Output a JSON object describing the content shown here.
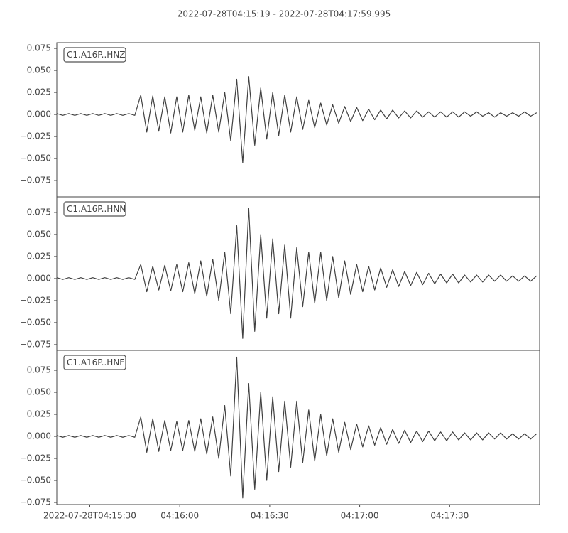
{
  "title": "2022-07-28T04:15:19  -  2022-07-28T04:17:59.995",
  "chart_data": [
    {
      "type": "line",
      "label": "C1.A16P..HNZ",
      "color": "#404040",
      "xlim": [
        19,
        179.995
      ],
      "ylim": [
        -0.0935,
        0.0815
      ],
      "yticks": [
        {
          "value": -0.075,
          "label": "−0.075"
        },
        {
          "value": -0.05,
          "label": "−0.050"
        },
        {
          "value": -0.025,
          "label": "−0.025"
        },
        {
          "value": 0,
          "label": "0.000"
        },
        {
          "value": 0.025,
          "label": "0.025"
        },
        {
          "value": 0.05,
          "label": "0.050"
        },
        {
          "value": 0.075,
          "label": "0.075"
        }
      ],
      "x": [
        19,
        21,
        23,
        25,
        27,
        29,
        31,
        33,
        35,
        37,
        39,
        41,
        43,
        45,
        47,
        49,
        51,
        53,
        55,
        57,
        59,
        61,
        63,
        65,
        67,
        69,
        71,
        73,
        75,
        77,
        79,
        81,
        83,
        85,
        87,
        89,
        91,
        93,
        95,
        97,
        99,
        101,
        103,
        105,
        107,
        109,
        111,
        113,
        115,
        117,
        119,
        121,
        123,
        125,
        127,
        129,
        131,
        133,
        135,
        137,
        139,
        141,
        143,
        145,
        147,
        149,
        151,
        153,
        155,
        157,
        159,
        161,
        163,
        165,
        167,
        169,
        171,
        173,
        175,
        177,
        179
      ],
      "values": [
        0.001,
        -0.001,
        0.001,
        -0.001,
        0.001,
        -0.001,
        0.001,
        -0.001,
        0.001,
        -0.001,
        0.001,
        -0.001,
        0.001,
        -0.001,
        0.022,
        -0.02,
        0.021,
        -0.019,
        0.02,
        -0.021,
        0.02,
        -0.02,
        0.022,
        -0.018,
        0.02,
        -0.021,
        0.022,
        -0.02,
        0.025,
        -0.03,
        0.04,
        -0.055,
        0.043,
        -0.035,
        0.03,
        -0.028,
        0.025,
        -0.024,
        0.022,
        -0.02,
        0.02,
        -0.017,
        0.016,
        -0.015,
        0.013,
        -0.012,
        0.011,
        -0.01,
        0.009,
        -0.008,
        0.008,
        -0.007,
        0.006,
        -0.006,
        0.005,
        -0.005,
        0.005,
        -0.004,
        0.004,
        -0.004,
        0.004,
        -0.003,
        0.003,
        -0.003,
        0.003,
        -0.003,
        0.003,
        -0.003,
        0.003,
        -0.002,
        0.003,
        -0.002,
        0.002,
        -0.003,
        0.002,
        -0.002,
        0.002,
        -0.002,
        0.003,
        -0.002,
        0.002
      ]
    },
    {
      "type": "line",
      "label": "C1.A16P..HNN",
      "color": "#404040",
      "xlim": [
        19,
        179.995
      ],
      "ylim": [
        -0.0815,
        0.0927
      ],
      "yticks": [
        {
          "value": -0.075,
          "label": "−0.075"
        },
        {
          "value": -0.05,
          "label": "−0.050"
        },
        {
          "value": -0.025,
          "label": "−0.025"
        },
        {
          "value": 0,
          "label": "0.000"
        },
        {
          "value": 0.025,
          "label": "0.025"
        },
        {
          "value": 0.05,
          "label": "0.050"
        },
        {
          "value": 0.075,
          "label": "0.075"
        }
      ],
      "x": [
        19,
        21,
        23,
        25,
        27,
        29,
        31,
        33,
        35,
        37,
        39,
        41,
        43,
        45,
        47,
        49,
        51,
        53,
        55,
        57,
        59,
        61,
        63,
        65,
        67,
        69,
        71,
        73,
        75,
        77,
        79,
        81,
        83,
        85,
        87,
        89,
        91,
        93,
        95,
        97,
        99,
        101,
        103,
        105,
        107,
        109,
        111,
        113,
        115,
        117,
        119,
        121,
        123,
        125,
        127,
        129,
        131,
        133,
        135,
        137,
        139,
        141,
        143,
        145,
        147,
        149,
        151,
        153,
        155,
        157,
        159,
        161,
        163,
        165,
        167,
        169,
        171,
        173,
        175,
        177,
        179
      ],
      "values": [
        0.001,
        -0.001,
        0.001,
        -0.001,
        0.001,
        -0.001,
        0.001,
        -0.001,
        0.001,
        -0.001,
        0.001,
        -0.001,
        0.001,
        -0.001,
        0.016,
        -0.015,
        0.014,
        -0.013,
        0.015,
        -0.014,
        0.016,
        -0.015,
        0.018,
        -0.017,
        0.02,
        -0.02,
        0.022,
        -0.025,
        0.03,
        -0.04,
        0.06,
        -0.068,
        0.08,
        -0.06,
        0.05,
        -0.045,
        0.045,
        -0.04,
        0.038,
        -0.045,
        0.035,
        -0.032,
        0.03,
        -0.028,
        0.03,
        -0.025,
        0.025,
        -0.022,
        0.02,
        -0.018,
        0.016,
        -0.015,
        0.014,
        -0.013,
        0.012,
        -0.01,
        0.01,
        -0.009,
        0.008,
        -0.008,
        0.007,
        -0.007,
        0.006,
        -0.006,
        0.005,
        -0.005,
        0.005,
        -0.005,
        0.004,
        -0.004,
        0.004,
        -0.004,
        0.004,
        -0.003,
        0.004,
        -0.003,
        0.003,
        -0.003,
        0.003,
        -0.003,
        0.003
      ]
    },
    {
      "type": "line",
      "label": "C1.A16P..HNE",
      "color": "#404040",
      "xlim": [
        19,
        179.995
      ],
      "ylim": [
        -0.0774,
        0.0976
      ],
      "yticks": [
        {
          "value": -0.075,
          "label": "−0.075"
        },
        {
          "value": -0.05,
          "label": "−0.050"
        },
        {
          "value": -0.025,
          "label": "−0.025"
        },
        {
          "value": 0,
          "label": "0.000"
        },
        {
          "value": 0.025,
          "label": "0.025"
        },
        {
          "value": 0.05,
          "label": "0.050"
        },
        {
          "value": 0.075,
          "label": "0.075"
        }
      ],
      "xticks": [
        {
          "value": 30,
          "label": "2022-07-28T04:15:30"
        },
        {
          "value": 60,
          "label": "04:16:00"
        },
        {
          "value": 90,
          "label": "04:16:30"
        },
        {
          "value": 120,
          "label": "04:17:00"
        },
        {
          "value": 150,
          "label": "04:17:30"
        }
      ],
      "x": [
        19,
        21,
        23,
        25,
        27,
        29,
        31,
        33,
        35,
        37,
        39,
        41,
        43,
        45,
        47,
        49,
        51,
        53,
        55,
        57,
        59,
        61,
        63,
        65,
        67,
        69,
        71,
        73,
        75,
        77,
        79,
        81,
        83,
        85,
        87,
        89,
        91,
        93,
        95,
        97,
        99,
        101,
        103,
        105,
        107,
        109,
        111,
        113,
        115,
        117,
        119,
        121,
        123,
        125,
        127,
        129,
        131,
        133,
        135,
        137,
        139,
        141,
        143,
        145,
        147,
        149,
        151,
        153,
        155,
        157,
        159,
        161,
        163,
        165,
        167,
        169,
        171,
        173,
        175,
        177,
        179
      ],
      "values": [
        0.001,
        -0.001,
        0.001,
        -0.001,
        0.001,
        -0.001,
        0.001,
        -0.001,
        0.001,
        -0.001,
        0.001,
        -0.001,
        0.001,
        -0.001,
        0.022,
        -0.018,
        0.02,
        -0.017,
        0.018,
        -0.016,
        0.017,
        -0.016,
        0.018,
        -0.017,
        0.02,
        -0.02,
        0.022,
        -0.025,
        0.035,
        -0.045,
        0.09,
        -0.07,
        0.06,
        -0.06,
        0.05,
        -0.05,
        0.045,
        -0.04,
        0.04,
        -0.035,
        0.04,
        -0.03,
        0.03,
        -0.028,
        0.025,
        -0.022,
        0.02,
        -0.018,
        0.016,
        -0.015,
        0.014,
        -0.012,
        0.012,
        -0.01,
        0.01,
        -0.009,
        0.008,
        -0.008,
        0.007,
        -0.007,
        0.006,
        -0.006,
        0.006,
        -0.005,
        0.005,
        -0.005,
        0.005,
        -0.004,
        0.004,
        -0.004,
        0.004,
        -0.004,
        0.004,
        -0.003,
        0.004,
        -0.003,
        0.003,
        -0.003,
        0.003,
        -0.003,
        0.003
      ]
    }
  ]
}
